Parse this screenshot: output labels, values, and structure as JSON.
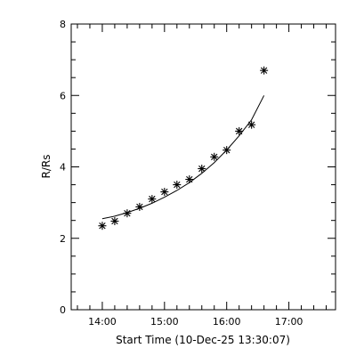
{
  "chart_data": {
    "type": "scatter",
    "xlabel": "Start Time (10-Dec-25 13:30:07)",
    "ylabel": "R/Rs",
    "x_unit": "hours",
    "xlim": [
      "13:30",
      "17:45"
    ],
    "ylim": [
      0,
      8
    ],
    "x_ticks": [
      "14:00",
      "15:00",
      "16:00",
      "17:00"
    ],
    "y_ticks": [
      0,
      2,
      4,
      6,
      8
    ],
    "grid": false,
    "series": [
      {
        "marker": "asterisk",
        "x": [
          "14:00",
          "14:12",
          "14:24",
          "14:36",
          "14:48",
          "15:00",
          "15:12",
          "15:24",
          "15:36",
          "15:48",
          "16:00",
          "16:12",
          "16:24",
          "16:36"
        ],
        "y": [
          2.35,
          2.48,
          2.7,
          2.88,
          3.1,
          3.3,
          3.5,
          3.65,
          3.95,
          4.28,
          4.47,
          5.0,
          5.18,
          6.7
        ]
      },
      {
        "style": "line",
        "x": [
          "14:00",
          "14:12",
          "14:24",
          "14:36",
          "14:48",
          "15:00",
          "15:12",
          "15:24",
          "15:36",
          "15:48",
          "16:00",
          "16:12",
          "16:24",
          "16:36"
        ],
        "y": [
          2.55,
          2.62,
          2.72,
          2.84,
          2.98,
          3.15,
          3.34,
          3.56,
          3.82,
          4.12,
          4.47,
          4.87,
          5.32,
          6.0
        ]
      }
    ]
  }
}
